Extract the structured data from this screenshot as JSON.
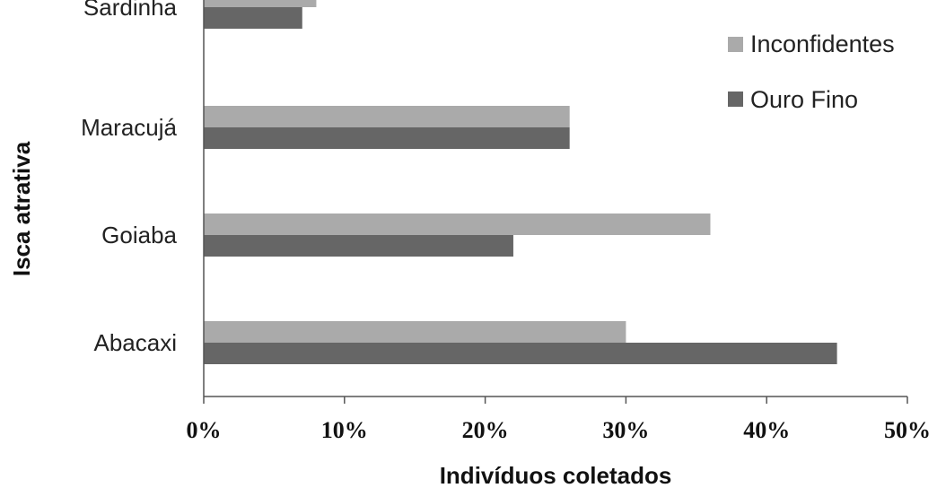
{
  "chart_data": {
    "type": "bar",
    "orientation": "horizontal",
    "categories": [
      "Sardinha",
      "Maracujá",
      "Goiaba",
      "Abacaxi"
    ],
    "series": [
      {
        "name": "Inconfidentes",
        "color": "#aaaaaa",
        "values": [
          8,
          26,
          36,
          30
        ]
      },
      {
        "name": "Ouro Fino",
        "color": "#666666",
        "values": [
          7,
          26,
          22,
          45
        ]
      }
    ],
    "xlabel": "Indivíduos coletados",
    "ylabel": "Isca atrativa",
    "xlim": [
      0,
      50
    ],
    "ticks": [
      "0%",
      "10%",
      "20%",
      "30%",
      "40%",
      "50%"
    ],
    "tick_values": [
      0,
      10,
      20,
      30,
      40,
      50
    ],
    "grid": false,
    "legend_position": "top-right"
  }
}
